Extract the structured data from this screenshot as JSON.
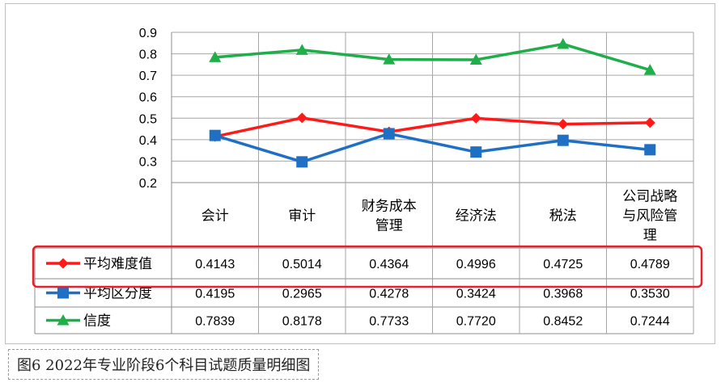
{
  "chart_data": {
    "type": "line",
    "categories": [
      [
        "会计"
      ],
      [
        "审计"
      ],
      [
        "财务成本",
        "管理"
      ],
      [
        "经济法"
      ],
      [
        "税法"
      ],
      [
        "公司战略",
        "与风险管",
        "理"
      ]
    ],
    "series": [
      {
        "name": "平均难度值",
        "values": [
          0.4143,
          0.5014,
          0.4364,
          0.4996,
          0.4725,
          0.4789
        ],
        "labels": [
          "0.4143",
          "0.5014",
          "0.4364",
          "0.4996",
          "0.4725",
          "0.4789"
        ],
        "color": "#ff1a1a",
        "marker": "diamond"
      },
      {
        "name": "平均区分度",
        "values": [
          0.4195,
          0.2965,
          0.4278,
          0.3424,
          0.3968,
          0.353
        ],
        "labels": [
          "0.4195",
          "0.2965",
          "0.4278",
          "0.3424",
          "0.3968",
          "0.3530"
        ],
        "color": "#1f6fc5",
        "marker": "square"
      },
      {
        "name": "信度",
        "values": [
          0.7839,
          0.8178,
          0.7733,
          0.772,
          0.8452,
          0.7244
        ],
        "labels": [
          "0.7839",
          "0.8178",
          "0.7733",
          "0.7720",
          "0.8452",
          "0.7244"
        ],
        "color": "#1fae4a",
        "marker": "triangle"
      }
    ],
    "yticks": [
      "0.2",
      "0.3",
      "0.4",
      "0.5",
      "0.6",
      "0.7",
      "0.8",
      "0.9"
    ],
    "ylim": [
      0.2,
      0.9
    ],
    "grid": true,
    "legend": "data-table",
    "highlight": {
      "series": "平均难度值",
      "color": "#e8202a"
    }
  },
  "caption": "图6  2022年专业阶段6个科目试题质量明细图"
}
